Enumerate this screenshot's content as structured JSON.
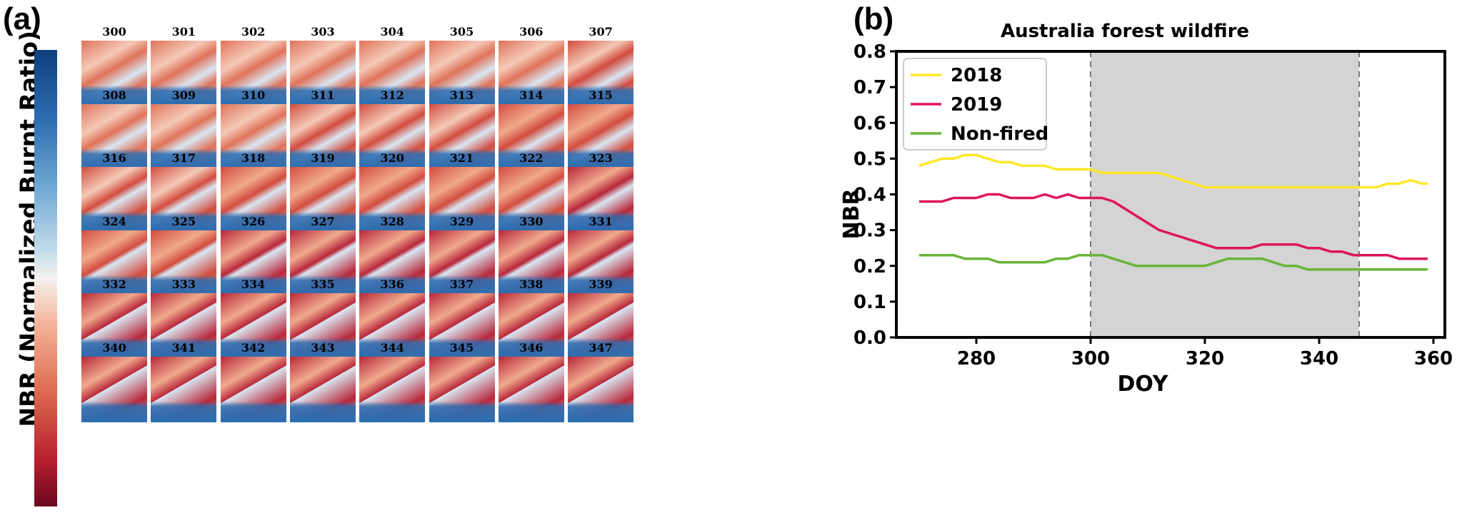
{
  "panels": {
    "a_label": "(a)",
    "b_label": "(b)"
  },
  "heatmap_panel": {
    "colorbar_label": "NBR (Normalized Burnt Ratio)",
    "colorbar_colors": [
      "#0f3f7c",
      "#2b6cb0",
      "#6fa8d3",
      "#c4dcec",
      "#f6f2ef",
      "#f4b49a",
      "#dd6a4f",
      "#b61f2e",
      "#6b0620"
    ],
    "doy_labels": [
      "300",
      "301",
      "302",
      "303",
      "304",
      "305",
      "306",
      "307",
      "308",
      "309",
      "310",
      "311",
      "312",
      "313",
      "314",
      "315",
      "316",
      "317",
      "318",
      "319",
      "320",
      "321",
      "322",
      "323",
      "324",
      "325",
      "326",
      "327",
      "328",
      "329",
      "330",
      "331",
      "332",
      "333",
      "334",
      "335",
      "336",
      "337",
      "338",
      "339",
      "340",
      "341",
      "342",
      "343",
      "344",
      "345",
      "346",
      "347"
    ]
  },
  "chart_data": {
    "type": "line",
    "title": "Australia forest wildfire",
    "xlabel": "DOY",
    "ylabel": "NBR",
    "xlim": [
      266,
      362
    ],
    "ylim": [
      0.0,
      0.8
    ],
    "xticks": [
      280,
      300,
      320,
      340,
      360
    ],
    "yticks": [
      0.0,
      0.1,
      0.2,
      0.3,
      0.4,
      0.5,
      0.6,
      0.7,
      0.8
    ],
    "shaded_region": [
      300,
      347
    ],
    "shade_color": "#d4d4d4",
    "legend_position": "top-left",
    "x": [
      270,
      272,
      274,
      276,
      278,
      280,
      282,
      284,
      286,
      288,
      290,
      292,
      294,
      296,
      298,
      300,
      302,
      304,
      306,
      308,
      310,
      312,
      314,
      316,
      318,
      320,
      322,
      324,
      326,
      328,
      330,
      332,
      334,
      336,
      338,
      340,
      342,
      344,
      346,
      348,
      350,
      352,
      354,
      356,
      358,
      359
    ],
    "series": [
      {
        "name": "2018",
        "color": "#fde725",
        "values": [
          0.48,
          0.49,
          0.5,
          0.5,
          0.51,
          0.51,
          0.5,
          0.49,
          0.49,
          0.48,
          0.48,
          0.48,
          0.47,
          0.47,
          0.47,
          0.47,
          0.46,
          0.46,
          0.46,
          0.46,
          0.46,
          0.46,
          0.45,
          0.44,
          0.43,
          0.42,
          0.42,
          0.42,
          0.42,
          0.42,
          0.42,
          0.42,
          0.42,
          0.42,
          0.42,
          0.42,
          0.42,
          0.42,
          0.42,
          0.42,
          0.42,
          0.43,
          0.43,
          0.44,
          0.43,
          0.43
        ]
      },
      {
        "name": "2019",
        "color": "#e0145a",
        "values": [
          0.38,
          0.38,
          0.38,
          0.39,
          0.39,
          0.39,
          0.4,
          0.4,
          0.39,
          0.39,
          0.39,
          0.4,
          0.39,
          0.4,
          0.39,
          0.39,
          0.39,
          0.38,
          0.36,
          0.34,
          0.32,
          0.3,
          0.29,
          0.28,
          0.27,
          0.26,
          0.25,
          0.25,
          0.25,
          0.25,
          0.26,
          0.26,
          0.26,
          0.26,
          0.25,
          0.25,
          0.24,
          0.24,
          0.23,
          0.23,
          0.23,
          0.23,
          0.22,
          0.22,
          0.22,
          0.22
        ]
      },
      {
        "name": "Non-fired",
        "color": "#6ab43a",
        "values": [
          0.23,
          0.23,
          0.23,
          0.23,
          0.22,
          0.22,
          0.22,
          0.21,
          0.21,
          0.21,
          0.21,
          0.21,
          0.22,
          0.22,
          0.23,
          0.23,
          0.23,
          0.22,
          0.21,
          0.2,
          0.2,
          0.2,
          0.2,
          0.2,
          0.2,
          0.2,
          0.21,
          0.22,
          0.22,
          0.22,
          0.22,
          0.21,
          0.2,
          0.2,
          0.19,
          0.19,
          0.19,
          0.19,
          0.19,
          0.19,
          0.19,
          0.19,
          0.19,
          0.19,
          0.19,
          0.19
        ]
      }
    ]
  }
}
